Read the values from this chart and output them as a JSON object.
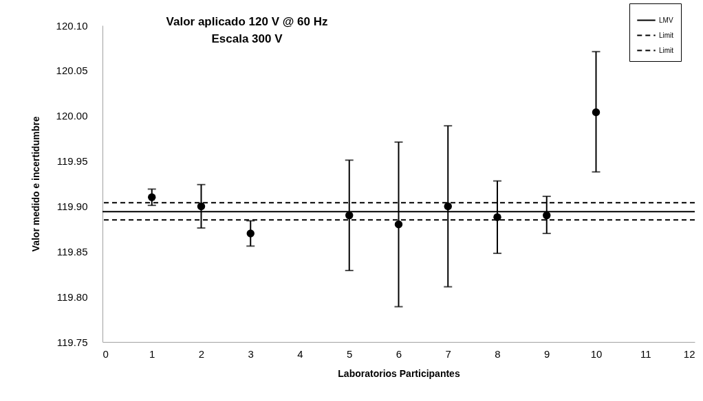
{
  "chart_data": {
    "type": "scatter",
    "xlabel": "Laboratorios Participantes",
    "ylabel": "Valor medido e incertidumbre",
    "x": [
      1,
      2,
      3,
      5,
      6,
      7,
      8,
      9,
      10
    ],
    "series": [
      {
        "color": "#000000",
        "values": [
          119.91,
          119.9,
          119.87,
          119.89,
          119.88,
          119.9,
          119.888,
          119.89,
          120.004
        ],
        "errors": [
          [
            119.901,
            119.919
          ],
          [
            119.876,
            119.924
          ],
          [
            119.856,
            119.884
          ],
          [
            119.829,
            119.951
          ],
          [
            119.789,
            119.971
          ],
          [
            119.811,
            119.989
          ],
          [
            119.848,
            119.928
          ],
          [
            119.87,
            119.911
          ],
          [
            119.938,
            120.071
          ]
        ]
      }
    ],
    "marker": "circle",
    "xlim": [
      0,
      12
    ],
    "xticks": [
      0,
      1,
      2,
      3,
      4,
      5,
      6,
      7,
      8,
      9,
      10,
      11,
      12
    ],
    "ylim": [
      119.75,
      120.1
    ],
    "yticks": [
      {
        "value": 119.75,
        "label": "119.75"
      },
      {
        "value": 119.8,
        "label": "119.80"
      },
      {
        "value": 119.85,
        "label": "119.85"
      },
      {
        "value": 119.9,
        "label": "119.90"
      },
      {
        "value": 119.95,
        "label": "119.95"
      },
      {
        "value": 120.0,
        "label": "120.00"
      },
      {
        "value": 120.05,
        "label": "120.05"
      },
      {
        "value": 120.1,
        "label": "120.10"
      }
    ],
    "ref_lines": [
      {
        "axis": "y",
        "value": 119.894,
        "label": "LMV",
        "color": "#000000",
        "line_style": "solid"
      },
      {
        "axis": "y",
        "value": 119.904,
        "label": "Limit",
        "color": "#000000",
        "line_style": "dashed"
      },
      {
        "axis": "y",
        "value": 119.885,
        "label": "Limit",
        "color": "#000000",
        "line_style": "dashed"
      }
    ],
    "annotations": [
      "Valor aplicado 120 V @ 60 Hz",
      "Escala 300 V"
    ],
    "grid": false,
    "legend": "top right"
  }
}
